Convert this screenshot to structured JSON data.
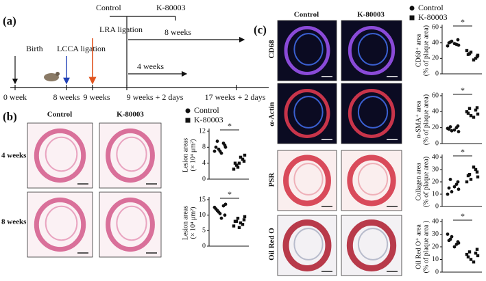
{
  "panel_a": {
    "label": "(a)",
    "groups": [
      "Control",
      "K-80003"
    ],
    "events": [
      "Birth",
      "LCCA ligation",
      "LRA ligation"
    ],
    "durations": [
      "8 weeks",
      "4 weeks"
    ],
    "timepoints": [
      "0 week",
      "8 weeks",
      "9 weeks",
      "9 weeks + 2 days",
      "17 weeks + 2 days"
    ]
  },
  "panel_b": {
    "label": "(b)",
    "columns": [
      "Control",
      "K-80003"
    ],
    "rows": [
      "4 weeks",
      "8 weeks"
    ]
  },
  "panel_c": {
    "label": "(c)",
    "columns": [
      "Control",
      "K-80003"
    ],
    "rows": [
      "CD68",
      "α-Actin",
      "PSR",
      "Oil Red O"
    ]
  },
  "chart_data": [
    {
      "type": "strip",
      "ylabel": [
        "Lesion areas",
        "(× 10⁴ μm²)"
      ],
      "annotation": "*",
      "ylim": [
        0,
        12
      ],
      "yticks": [
        0,
        4,
        8,
        12
      ],
      "series": [
        {
          "name": "Control",
          "marker": "circle",
          "color": "#111111",
          "values": [
            8,
            9,
            7.5,
            8.5,
            7,
            6.5,
            9.5,
            8,
            7
          ]
        },
        {
          "name": "K-80003",
          "marker": "square",
          "color": "#111111",
          "values": [
            4,
            5,
            3,
            4.5,
            2.5,
            5.5,
            3.5,
            6,
            4
          ]
        }
      ]
    },
    {
      "type": "strip",
      "ylabel": [
        "Lesion areas",
        "(× 10⁴ μm²)"
      ],
      "annotation": "*",
      "ylim": [
        0,
        15
      ],
      "yticks": [
        0,
        5,
        10,
        15
      ],
      "series": [
        {
          "name": "Control",
          "marker": "circle",
          "color": "#111111",
          "values": [
            12,
            13,
            11,
            10,
            12.5,
            9,
            11.5,
            13.5,
            10.5
          ]
        },
        {
          "name": "K-80003",
          "marker": "square",
          "color": "#111111",
          "values": [
            8,
            7,
            9,
            8.5,
            6.5,
            7.5,
            8,
            9.5,
            6
          ]
        }
      ]
    },
    {
      "type": "strip",
      "ylabel": [
        "CD68⁺ area",
        "(% of plaque area)"
      ],
      "annotation": "*",
      "ylim": [
        0,
        60
      ],
      "yticks": [
        0,
        20,
        40,
        60
      ],
      "series": [
        {
          "name": "Control",
          "marker": "circle",
          "color": "#111111",
          "values": [
            40,
            38,
            42,
            44,
            36,
            39,
            41,
            37
          ]
        },
        {
          "name": "K-80003",
          "marker": "square",
          "color": "#111111",
          "values": [
            25,
            20,
            28,
            22,
            30,
            18,
            26,
            24
          ]
        }
      ]
    },
    {
      "type": "strip",
      "ylabel": [
        "α-SMA⁺ area",
        "(% of plaque area)"
      ],
      "annotation": "*",
      "ylim": [
        0,
        60
      ],
      "yticks": [
        0,
        20,
        40,
        60
      ],
      "series": [
        {
          "name": "Control",
          "marker": "circle",
          "color": "#111111",
          "values": [
            18,
            20,
            16,
            22,
            19,
            17,
            21,
            15
          ]
        },
        {
          "name": "K-80003",
          "marker": "square",
          "color": "#111111",
          "values": [
            38,
            42,
            35,
            45,
            40,
            33,
            44,
            37
          ]
        }
      ]
    },
    {
      "type": "strip",
      "ylabel": [
        "Collagen area",
        "(% of plaque area)"
      ],
      "annotation": "*",
      "ylim": [
        0,
        40
      ],
      "yticks": [
        0,
        10,
        20,
        30,
        40
      ],
      "series": [
        {
          "name": "Control",
          "marker": "circle",
          "color": "#111111",
          "values": [
            15,
            18,
            12,
            20,
            10,
            16,
            22,
            14
          ]
        },
        {
          "name": "K-80003",
          "marker": "square",
          "color": "#111111",
          "values": [
            25,
            30,
            22,
            28,
            20,
            32,
            26,
            24
          ]
        }
      ]
    },
    {
      "type": "strip",
      "ylabel": [
        "Oil Red O⁺ area",
        "(% of plaque area )"
      ],
      "annotation": "*",
      "ylim": [
        0,
        40
      ],
      "yticks": [
        0,
        10,
        20,
        30,
        40
      ],
      "series": [
        {
          "name": "Control",
          "marker": "circle",
          "color": "#111111",
          "values": [
            25,
            22,
            28,
            24,
            30,
            20,
            26,
            23
          ]
        },
        {
          "name": "K-80003",
          "marker": "square",
          "color": "#111111",
          "values": [
            12,
            15,
            10,
            18,
            14,
            8,
            16,
            13
          ]
        }
      ]
    }
  ]
}
